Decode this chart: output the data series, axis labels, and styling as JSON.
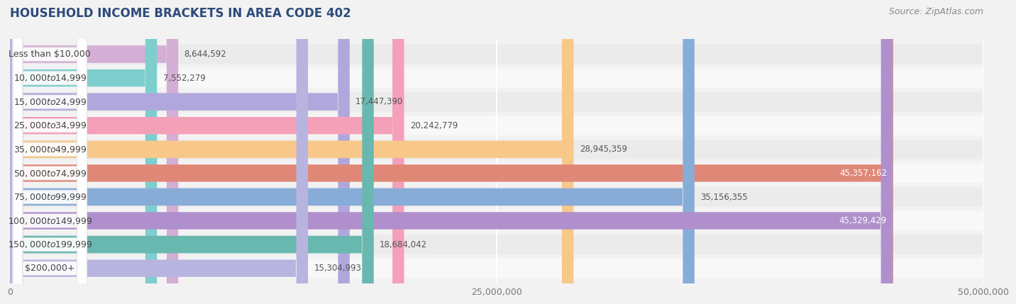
{
  "title": "HOUSEHOLD INCOME BRACKETS IN AREA CODE 402",
  "source": "Source: ZipAtlas.com",
  "categories": [
    "Less than $10,000",
    "$10,000 to $14,999",
    "$15,000 to $24,999",
    "$25,000 to $34,999",
    "$35,000 to $49,999",
    "$50,000 to $74,999",
    "$75,000 to $99,999",
    "$100,000 to $149,999",
    "$150,000 to $199,999",
    "$200,000+"
  ],
  "values": [
    8644592,
    7552279,
    17447390,
    20242779,
    28945359,
    45357162,
    35156355,
    45329429,
    18684042,
    15304993
  ],
  "bar_colors": [
    "#d4aed4",
    "#7ecece",
    "#b0a8dc",
    "#f4a0b8",
    "#f8c88a",
    "#e08878",
    "#88acd8",
    "#b090cc",
    "#68b8b0",
    "#b8b4e0"
  ],
  "value_labels": [
    "8,644,592",
    "7,552,279",
    "17,447,390",
    "20,242,779",
    "28,945,359",
    "45,357,162",
    "35,156,355",
    "45,329,429",
    "18,684,042",
    "15,304,993"
  ],
  "xlim": [
    0,
    50000000
  ],
  "xticks": [
    0,
    25000000,
    50000000
  ],
  "xticklabels": [
    "0",
    "25,000,000",
    "50,000,000"
  ],
  "background_color": "#f2f2f2",
  "row_bg_even": "#ebebeb",
  "row_bg_odd": "#f8f8f8",
  "title_fontsize": 12,
  "label_fontsize": 9,
  "value_fontsize": 8.5,
  "source_fontsize": 9
}
